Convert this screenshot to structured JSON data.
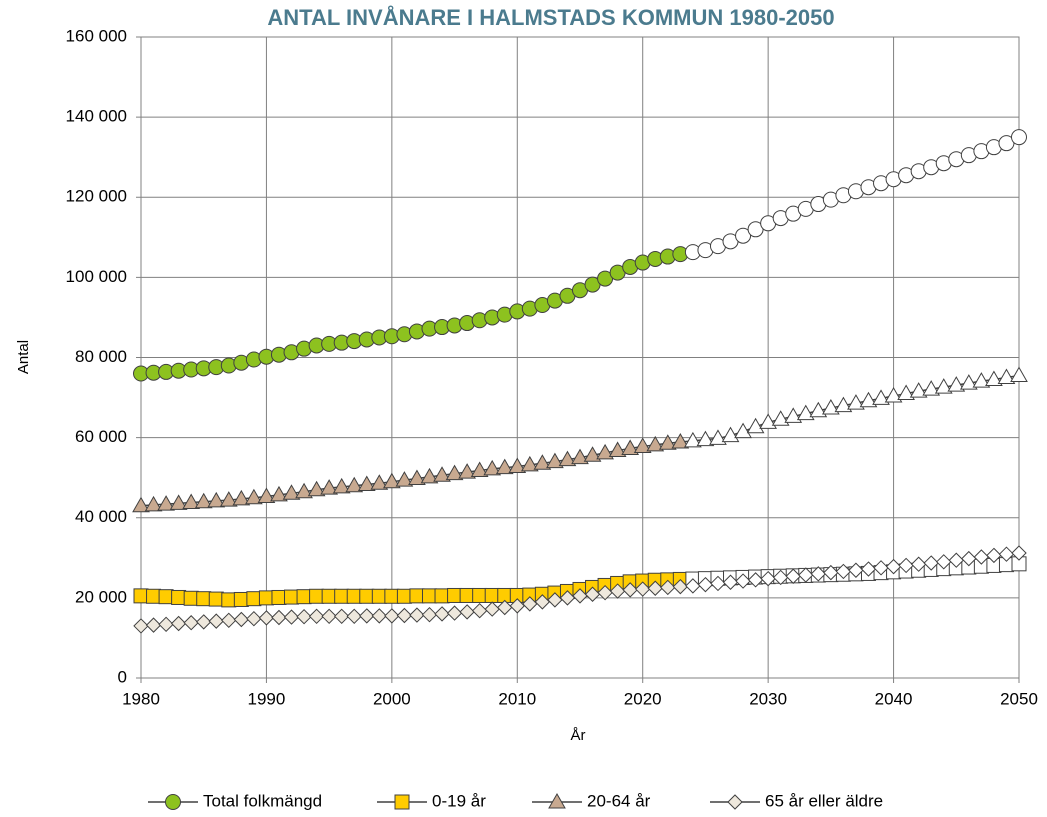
{
  "chart_data": {
    "type": "line",
    "title": "ANTAL INVÅNARE I HALMSTADS KOMMUN 1980-2050",
    "x_label": "År",
    "y_label": "Antal",
    "x": [
      1980,
      1981,
      1982,
      1983,
      1984,
      1985,
      1986,
      1987,
      1988,
      1989,
      1990,
      1991,
      1992,
      1993,
      1994,
      1995,
      1996,
      1997,
      1998,
      1999,
      2000,
      2001,
      2002,
      2003,
      2004,
      2005,
      2006,
      2007,
      2008,
      2009,
      2010,
      2011,
      2012,
      2013,
      2014,
      2015,
      2016,
      2017,
      2018,
      2019,
      2020,
      2021,
      2022,
      2023,
      2024,
      2025,
      2026,
      2027,
      2028,
      2029,
      2030,
      2031,
      2032,
      2033,
      2034,
      2035,
      2036,
      2037,
      2038,
      2039,
      2040,
      2041,
      2042,
      2043,
      2044,
      2045,
      2046,
      2047,
      2048,
      2049,
      2050
    ],
    "forecast_from": 2024,
    "forecast_color": "#ffffff",
    "line_color": "#404040",
    "series": [
      {
        "name": "Total folkmängd",
        "marker": "circle",
        "color": "#8dc21f",
        "values": [
          76000,
          76200,
          76400,
          76700,
          77000,
          77300,
          77600,
          78000,
          78700,
          79500,
          80200,
          80700,
          81300,
          82200,
          83000,
          83400,
          83700,
          84100,
          84500,
          85000,
          85300,
          85800,
          86500,
          87200,
          87600,
          88000,
          88600,
          89300,
          90000,
          90700,
          91500,
          92200,
          93100,
          94200,
          95400,
          96800,
          98200,
          99700,
          101200,
          102600,
          103700,
          104600,
          105200,
          105800,
          106300,
          106800,
          107800,
          109000,
          110400,
          112000,
          113500,
          114800,
          115900,
          117100,
          118300,
          119400,
          120500,
          121500,
          122500,
          123500,
          124500,
          125500,
          126500,
          127500,
          128500,
          129500,
          130500,
          131500,
          132500,
          133500,
          135000
        ]
      },
      {
        "name": "0-19 år",
        "marker": "square",
        "color": "#ffcc00",
        "values": [
          20500,
          20400,
          20300,
          20100,
          19900,
          19800,
          19700,
          19500,
          19600,
          19800,
          20000,
          20100,
          20200,
          20300,
          20400,
          20400,
          20400,
          20400,
          20400,
          20400,
          20400,
          20400,
          20500,
          20500,
          20500,
          20600,
          20600,
          20600,
          20600,
          20600,
          20600,
          20700,
          20900,
          21200,
          21600,
          22100,
          22600,
          23100,
          23600,
          24000,
          24200,
          24400,
          24500,
          24600,
          24700,
          24800,
          24900,
          25000,
          25100,
          25200,
          25300,
          25400,
          25500,
          25600,
          25700,
          25800,
          25900,
          26000,
          26100,
          26300,
          26500,
          26700,
          26900,
          27100,
          27300,
          27500,
          27700,
          27900,
          28100,
          28300,
          28500
        ]
      },
      {
        "name": "20-64 år",
        "marker": "triangle",
        "color": "#c8a990",
        "values": [
          43000,
          43200,
          43400,
          43600,
          43800,
          44000,
          44200,
          44400,
          44700,
          45000,
          45300,
          45700,
          46100,
          46500,
          47000,
          47400,
          47700,
          48000,
          48300,
          48600,
          49000,
          49400,
          49800,
          50200,
          50600,
          51000,
          51400,
          51800,
          52200,
          52500,
          52800,
          53200,
          53600,
          54000,
          54500,
          55000,
          55600,
          56200,
          56800,
          57300,
          57800,
          58200,
          58600,
          58900,
          59200,
          59500,
          59800,
          60500,
          61500,
          62700,
          63800,
          64600,
          65300,
          66000,
          66700,
          67400,
          68000,
          68600,
          69200,
          69800,
          70400,
          71000,
          71600,
          72100,
          72600,
          73100,
          73600,
          74100,
          74500,
          75000,
          75500
        ]
      },
      {
        "name": "65 år eller äldre",
        "marker": "diamond",
        "color": "#eee8dd",
        "values": [
          13000,
          13200,
          13400,
          13600,
          13800,
          14000,
          14200,
          14400,
          14600,
          14800,
          15000,
          15100,
          15200,
          15300,
          15400,
          15400,
          15400,
          15400,
          15500,
          15500,
          15500,
          15600,
          15700,
          15800,
          16000,
          16200,
          16500,
          16800,
          17200,
          17600,
          18000,
          18500,
          19000,
          19500,
          20000,
          20500,
          20900,
          21300,
          21700,
          22000,
          22200,
          22400,
          22600,
          22800,
          23000,
          23300,
          23600,
          23900,
          24200,
          24500,
          24800,
          25100,
          25400,
          25700,
          26000,
          26300,
          26600,
          26900,
          27200,
          27500,
          27800,
          28100,
          28400,
          28700,
          29000,
          29400,
          29800,
          30200,
          30600,
          30900,
          31200
        ]
      }
    ],
    "xlim": [
      1980,
      2050
    ],
    "xticks": [
      1980,
      1990,
      2000,
      2010,
      2020,
      2030,
      2040,
      2050
    ],
    "ylim": [
      0,
      160000
    ],
    "yticks": [
      0,
      {
        "value": 20000,
        "label": "20 000"
      },
      {
        "value": 40000,
        "label": "40 000"
      },
      {
        "value": 60000,
        "label": "60 000"
      },
      {
        "value": 80000,
        "label": "80 000"
      },
      {
        "value": 100000,
        "label": "100 000"
      },
      {
        "value": 120000,
        "label": "120 000"
      },
      {
        "value": 140000,
        "label": "140 000"
      },
      {
        "value": 160000,
        "label": "160 000"
      }
    ],
    "grid": true,
    "legend": "bottom"
  }
}
